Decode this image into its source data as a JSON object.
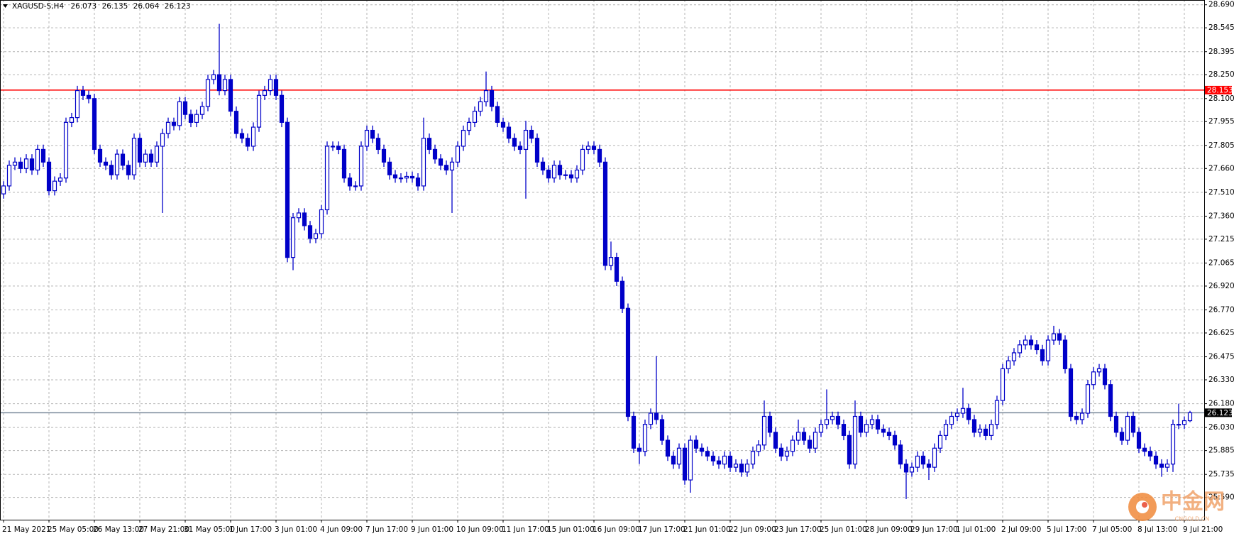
{
  "chart_data": {
    "type": "candlestick",
    "symbol": "XAGUSD-S,H4",
    "color": "#0000c8",
    "up_fill": "#ffffff",
    "grid": true,
    "ylim": [
      25.45,
      28.72
    ],
    "yticks": [
      {
        "value": 28.69,
        "label": "28.690"
      },
      28.545,
      28.395,
      {
        "value": 28.25,
        "label": "28.250"
      },
      {
        "value": 28.1,
        "label": "28.100"
      },
      27.955,
      27.805,
      {
        "value": 27.66,
        "label": "27.660"
      },
      {
        "value": 27.51,
        "label": "27.510"
      },
      {
        "value": 27.36,
        "label": "27.360"
      },
      27.215,
      27.065,
      {
        "value": 26.92,
        "label": "26.920"
      },
      {
        "value": 26.77,
        "label": "26.770"
      },
      26.625,
      26.475,
      {
        "value": 26.33,
        "label": "26.330"
      },
      {
        "value": 26.18,
        "label": "26.180"
      },
      {
        "value": 26.03,
        "label": "26.030"
      },
      25.885,
      25.735,
      {
        "value": 25.59,
        "label": "25.590"
      }
    ],
    "lines": [
      {
        "value": 28.153,
        "color": "#ff0000",
        "label_color": "#ff0000"
      },
      {
        "value": 26.123,
        "color": "#778899",
        "label_color": "#000000"
      }
    ],
    "watermark": {
      "text": "中金网",
      "sub": "CNGOLD.CN"
    },
    "categories": [
      "21 May 2021",
      null,
      null,
      null,
      null,
      null,
      null,
      null,
      "25 May 05:00",
      null,
      null,
      null,
      null,
      null,
      null,
      null,
      "26 May 13:00",
      null,
      null,
      null,
      null,
      null,
      null,
      null,
      "27 May 21:00",
      null,
      null,
      null,
      null,
      null,
      null,
      null,
      "31 May 05:00",
      null,
      null,
      null,
      null,
      null,
      null,
      null,
      "1 Jun 17:00",
      null,
      null,
      null,
      null,
      null,
      null,
      null,
      "3 Jun 01:00",
      null,
      null,
      null,
      null,
      null,
      null,
      null,
      "4 Jun 09:00",
      null,
      null,
      null,
      null,
      null,
      null,
      null,
      "7 Jun 17:00",
      null,
      null,
      null,
      null,
      null,
      null,
      null,
      "9 Jun 01:00",
      null,
      null,
      null,
      null,
      null,
      null,
      null,
      "10 Jun 09:00",
      null,
      null,
      null,
      null,
      null,
      null,
      null,
      "11 Jun 17:00",
      null,
      null,
      null,
      null,
      null,
      null,
      null,
      "15 Jun 01:00",
      null,
      null,
      null,
      null,
      null,
      null,
      null,
      "16 Jun 09:00",
      null,
      null,
      null,
      null,
      null,
      null,
      null,
      "17 Jun 17:00",
      null,
      null,
      null,
      null,
      null,
      null,
      null,
      "21 Jun 01:00",
      null,
      null,
      null,
      null,
      null,
      null,
      null,
      "22 Jun 09:00",
      null,
      null,
      null,
      null,
      null,
      null,
      null,
      "23 Jun 17:00",
      null,
      null,
      null,
      null,
      null,
      null,
      null,
      "25 Jun 01:00",
      null,
      null,
      null,
      null,
      null,
      null,
      null,
      "28 Jun 09:00",
      null,
      null,
      null,
      null,
      null,
      null,
      null,
      "29 Jun 17:00",
      null,
      null,
      null,
      null,
      null,
      null,
      null,
      "1 Jul 01:00",
      null,
      null,
      null,
      null,
      null,
      null,
      null,
      "2 Jul 09:00",
      null,
      null,
      null,
      null,
      null,
      null,
      null,
      "5 Jul 17:00",
      null,
      null,
      null,
      null,
      null,
      null,
      null,
      "7 Jul 05:00",
      null,
      null,
      null,
      null,
      null,
      null,
      null,
      "8 Jul 13:00",
      null,
      null,
      null,
      null,
      null,
      null,
      null,
      "9 Jul 21:00",
      null
    ],
    "open": [
      27.5,
      27.55,
      27.68,
      27.7,
      27.66,
      27.72,
      27.65,
      27.78,
      27.7,
      27.52,
      27.58,
      27.6,
      27.95,
      27.98,
      28.15,
      28.12,
      28.1,
      27.78,
      27.7,
      27.68,
      27.62,
      27.75,
      27.68,
      27.62,
      27.85,
      27.7,
      27.75,
      27.7,
      27.8,
      27.88,
      27.95,
      27.93,
      28.08,
      28.0,
      27.95,
      28.0,
      28.05,
      28.22,
      28.25,
      28.15,
      28.22,
      28.02,
      27.88,
      27.85,
      27.8,
      27.92,
      28.12,
      28.15,
      28.22,
      28.12,
      27.95,
      27.1,
      27.35,
      27.38,
      27.3,
      27.22,
      27.25,
      27.4,
      27.8,
      27.8,
      27.78,
      27.6,
      27.55,
      27.55,
      27.8,
      27.9,
      27.85,
      27.78,
      27.7,
      27.62,
      27.6,
      27.6,
      27.61,
      27.6,
      27.55,
      27.85,
      27.78,
      27.72,
      27.68,
      27.65,
      27.7,
      27.8,
      27.9,
      27.95,
      28.02,
      28.08,
      28.15,
      28.05,
      27.95,
      27.92,
      27.85,
      27.8,
      27.78,
      27.9,
      27.85,
      27.7,
      27.65,
      27.6,
      27.68,
      27.62,
      27.62,
      27.6,
      27.65,
      27.78,
      27.8,
      27.78,
      27.7,
      27.05,
      27.1,
      26.95,
      26.78,
      26.1,
      25.9,
      25.88,
      26.05,
      26.12,
      26.08,
      25.95,
      25.85,
      25.8,
      25.9,
      25.7,
      25.95,
      25.9,
      25.88,
      25.85,
      25.82,
      25.8,
      25.85,
      25.78,
      25.8,
      25.75,
      25.8,
      25.88,
      25.92,
      26.1,
      26.0,
      25.9,
      25.85,
      25.88,
      25.95,
      26.0,
      25.95,
      25.9,
      26.0,
      26.05,
      26.08,
      26.1,
      26.05,
      25.98,
      25.8,
      26.1,
      26.0,
      26.05,
      26.08,
      26.02,
      26.0,
      25.98,
      25.92,
      25.8,
      25.75,
      25.78,
      25.85,
      25.8,
      25.78,
      25.9,
      25.98,
      26.05,
      26.1,
      26.12,
      26.15,
      26.08,
      26.0,
      26.02,
      25.98,
      26.05,
      26.2,
      26.4,
      26.45,
      26.5,
      26.55,
      26.58,
      26.55,
      26.52,
      26.45,
      26.58,
      26.62,
      26.58,
      26.4,
      26.1,
      26.08,
      26.12,
      26.3,
      26.38,
      26.4,
      26.3,
      26.1,
      26.0,
      25.95,
      26.1,
      26.0,
      25.9,
      25.88,
      25.85,
      25.8,
      25.78,
      25.8,
      26.05,
      26.05,
      26.073
    ],
    "high": [
      27.58,
      27.71,
      27.73,
      27.73,
      27.75,
      27.75,
      27.81,
      27.81,
      27.73,
      27.61,
      27.63,
      27.98,
      28.01,
      28.18,
      28.18,
      28.15,
      28.13,
      27.81,
      27.73,
      27.71,
      27.78,
      27.78,
      27.71,
      27.88,
      27.88,
      27.78,
      27.78,
      27.83,
      27.91,
      27.98,
      27.98,
      28.11,
      28.11,
      28.03,
      28.03,
      28.08,
      28.25,
      28.28,
      28.57,
      28.25,
      28.25,
      28.05,
      27.91,
      27.88,
      27.95,
      28.15,
      28.18,
      28.25,
      28.25,
      28.15,
      27.98,
      27.38,
      27.41,
      27.41,
      27.33,
      27.28,
      27.43,
      27.83,
      27.83,
      27.83,
      27.81,
      27.63,
      27.58,
      27.83,
      27.93,
      27.93,
      27.88,
      27.81,
      27.73,
      27.65,
      27.63,
      27.64,
      27.64,
      27.63,
      27.98,
      27.88,
      27.81,
      27.75,
      27.71,
      27.73,
      27.83,
      27.93,
      27.98,
      28.05,
      28.11,
      28.27,
      28.18,
      28.08,
      27.98,
      27.95,
      27.88,
      27.83,
      27.96,
      27.93,
      27.88,
      27.73,
      27.68,
      27.71,
      27.71,
      27.65,
      27.65,
      27.68,
      27.81,
      27.83,
      27.83,
      27.81,
      27.73,
      27.2,
      27.13,
      26.98,
      26.81,
      26.13,
      25.93,
      26.08,
      26.15,
      26.48,
      26.11,
      25.98,
      25.88,
      25.93,
      25.93,
      25.98,
      25.98,
      25.93,
      25.91,
      25.88,
      25.85,
      25.88,
      25.88,
      25.83,
      25.83,
      25.83,
      25.91,
      25.95,
      26.2,
      26.13,
      26.03,
      25.93,
      25.91,
      25.98,
      26.08,
      26.03,
      25.98,
      26.03,
      26.08,
      26.27,
      26.13,
      26.13,
      26.08,
      26.01,
      26.2,
      26.13,
      26.08,
      26.11,
      26.11,
      26.05,
      26.03,
      26.01,
      25.95,
      25.83,
      25.81,
      25.88,
      25.88,
      25.83,
      25.93,
      26.01,
      26.08,
      26.13,
      26.15,
      26.28,
      26.18,
      26.11,
      26.05,
      26.05,
      26.08,
      26.23,
      26.43,
      26.48,
      26.53,
      26.58,
      26.61,
      26.61,
      26.58,
      26.55,
      26.61,
      26.67,
      26.65,
      26.61,
      26.43,
      26.13,
      26.15,
      26.33,
      26.41,
      26.43,
      26.43,
      26.33,
      26.13,
      26.03,
      26.13,
      26.13,
      26.03,
      25.93,
      25.91,
      25.88,
      25.83,
      25.83,
      26.08,
      26.18,
      26.1,
      26.135
    ],
    "low": [
      27.47,
      27.52,
      27.65,
      27.63,
      27.63,
      27.62,
      27.62,
      27.67,
      27.49,
      27.49,
      27.55,
      27.57,
      27.92,
      27.95,
      28.09,
      28.07,
      27.75,
      27.67,
      27.65,
      27.59,
      27.59,
      27.65,
      27.59,
      27.59,
      27.67,
      27.67,
      27.67,
      27.67,
      27.38,
      27.85,
      27.9,
      27.9,
      27.97,
      27.92,
      27.92,
      27.97,
      28.02,
      28.19,
      28.12,
      28.12,
      27.99,
      27.85,
      27.82,
      27.77,
      27.77,
      27.89,
      28.09,
      28.12,
      28.09,
      27.92,
      27.07,
      27.02,
      27.32,
      27.27,
      27.19,
      27.19,
      27.22,
      27.37,
      27.77,
      27.75,
      27.57,
      27.52,
      27.52,
      27.52,
      27.77,
      27.82,
      27.75,
      27.67,
      27.59,
      27.57,
      27.57,
      27.57,
      27.57,
      27.52,
      27.52,
      27.75,
      27.69,
      27.65,
      27.62,
      27.38,
      27.67,
      27.77,
      27.87,
      27.92,
      27.99,
      28.05,
      28.02,
      27.92,
      27.89,
      27.82,
      27.77,
      27.75,
      27.47,
      27.82,
      27.67,
      27.62,
      27.57,
      27.57,
      27.59,
      27.59,
      27.57,
      27.57,
      27.62,
      27.75,
      27.75,
      27.67,
      27.02,
      27.02,
      26.92,
      26.75,
      26.07,
      25.87,
      25.8,
      25.85,
      26.02,
      26.05,
      25.92,
      25.82,
      25.77,
      25.77,
      25.67,
      25.62,
      25.87,
      25.85,
      25.82,
      25.79,
      25.77,
      25.77,
      25.75,
      25.75,
      25.72,
      25.72,
      25.77,
      25.85,
      25.89,
      25.97,
      25.87,
      25.82,
      25.82,
      25.85,
      25.92,
      25.92,
      25.87,
      25.87,
      25.97,
      26.02,
      26.05,
      26.02,
      25.95,
      25.77,
      25.77,
      25.97,
      25.97,
      26.02,
      25.99,
      25.97,
      25.95,
      25.89,
      25.77,
      25.58,
      25.72,
      25.75,
      25.77,
      25.7,
      25.75,
      25.87,
      25.95,
      26.02,
      26.07,
      26.09,
      26.05,
      25.97,
      25.97,
      25.95,
      25.95,
      26.02,
      26.17,
      26.37,
      26.42,
      26.47,
      26.52,
      26.52,
      26.49,
      26.42,
      26.42,
      26.55,
      26.55,
      26.37,
      26.07,
      26.05,
      26.05,
      26.09,
      26.27,
      26.35,
      26.27,
      26.07,
      25.97,
      25.92,
      25.92,
      25.97,
      25.87,
      25.85,
      25.82,
      25.77,
      25.72,
      25.75,
      25.75,
      26.02,
      26.02,
      26.064
    ],
    "close": [
      27.55,
      27.68,
      27.7,
      27.66,
      27.72,
      27.65,
      27.78,
      27.7,
      27.52,
      27.58,
      27.6,
      27.95,
      27.98,
      28.15,
      28.12,
      28.1,
      27.78,
      27.7,
      27.68,
      27.62,
      27.75,
      27.68,
      27.62,
      27.85,
      27.7,
      27.75,
      27.7,
      27.8,
      27.88,
      27.95,
      27.93,
      28.08,
      28.0,
      27.95,
      28.0,
      28.05,
      28.22,
      28.25,
      28.15,
      28.22,
      28.02,
      27.88,
      27.85,
      27.8,
      27.92,
      28.12,
      28.15,
      28.22,
      28.12,
      27.95,
      27.1,
      27.35,
      27.38,
      27.3,
      27.22,
      27.25,
      27.4,
      27.8,
      27.8,
      27.78,
      27.6,
      27.55,
      27.55,
      27.8,
      27.9,
      27.85,
      27.78,
      27.7,
      27.62,
      27.6,
      27.6,
      27.61,
      27.6,
      27.55,
      27.85,
      27.78,
      27.72,
      27.68,
      27.65,
      27.7,
      27.8,
      27.9,
      27.95,
      28.02,
      28.08,
      28.15,
      28.05,
      27.95,
      27.92,
      27.85,
      27.8,
      27.78,
      27.9,
      27.85,
      27.7,
      27.65,
      27.6,
      27.68,
      27.62,
      27.62,
      27.6,
      27.65,
      27.78,
      27.8,
      27.78,
      27.7,
      27.05,
      27.1,
      26.95,
      26.78,
      26.1,
      25.9,
      25.88,
      26.05,
      26.12,
      26.08,
      25.95,
      25.85,
      25.8,
      25.9,
      25.7,
      25.95,
      25.9,
      25.88,
      25.85,
      25.82,
      25.8,
      25.85,
      25.78,
      25.8,
      25.75,
      25.8,
      25.88,
      25.92,
      26.1,
      26.0,
      25.9,
      25.85,
      25.88,
      25.95,
      26.0,
      25.95,
      25.9,
      26.0,
      26.05,
      26.08,
      26.1,
      26.05,
      25.98,
      25.8,
      26.1,
      26.0,
      26.05,
      26.08,
      26.02,
      26.0,
      25.98,
      25.92,
      25.8,
      25.75,
      25.78,
      25.85,
      25.8,
      25.78,
      25.9,
      25.98,
      26.05,
      26.1,
      26.12,
      26.15,
      26.08,
      26.0,
      26.02,
      25.98,
      26.05,
      26.2,
      26.4,
      26.45,
      26.5,
      26.55,
      26.58,
      26.55,
      26.52,
      26.45,
      26.58,
      26.62,
      26.58,
      26.4,
      26.1,
      26.08,
      26.12,
      26.3,
      26.38,
      26.4,
      26.3,
      26.1,
      26.0,
      25.95,
      26.1,
      26.0,
      25.9,
      25.88,
      25.85,
      25.8,
      25.78,
      25.8,
      26.05,
      26.05,
      26.073,
      26.123
    ]
  }
}
